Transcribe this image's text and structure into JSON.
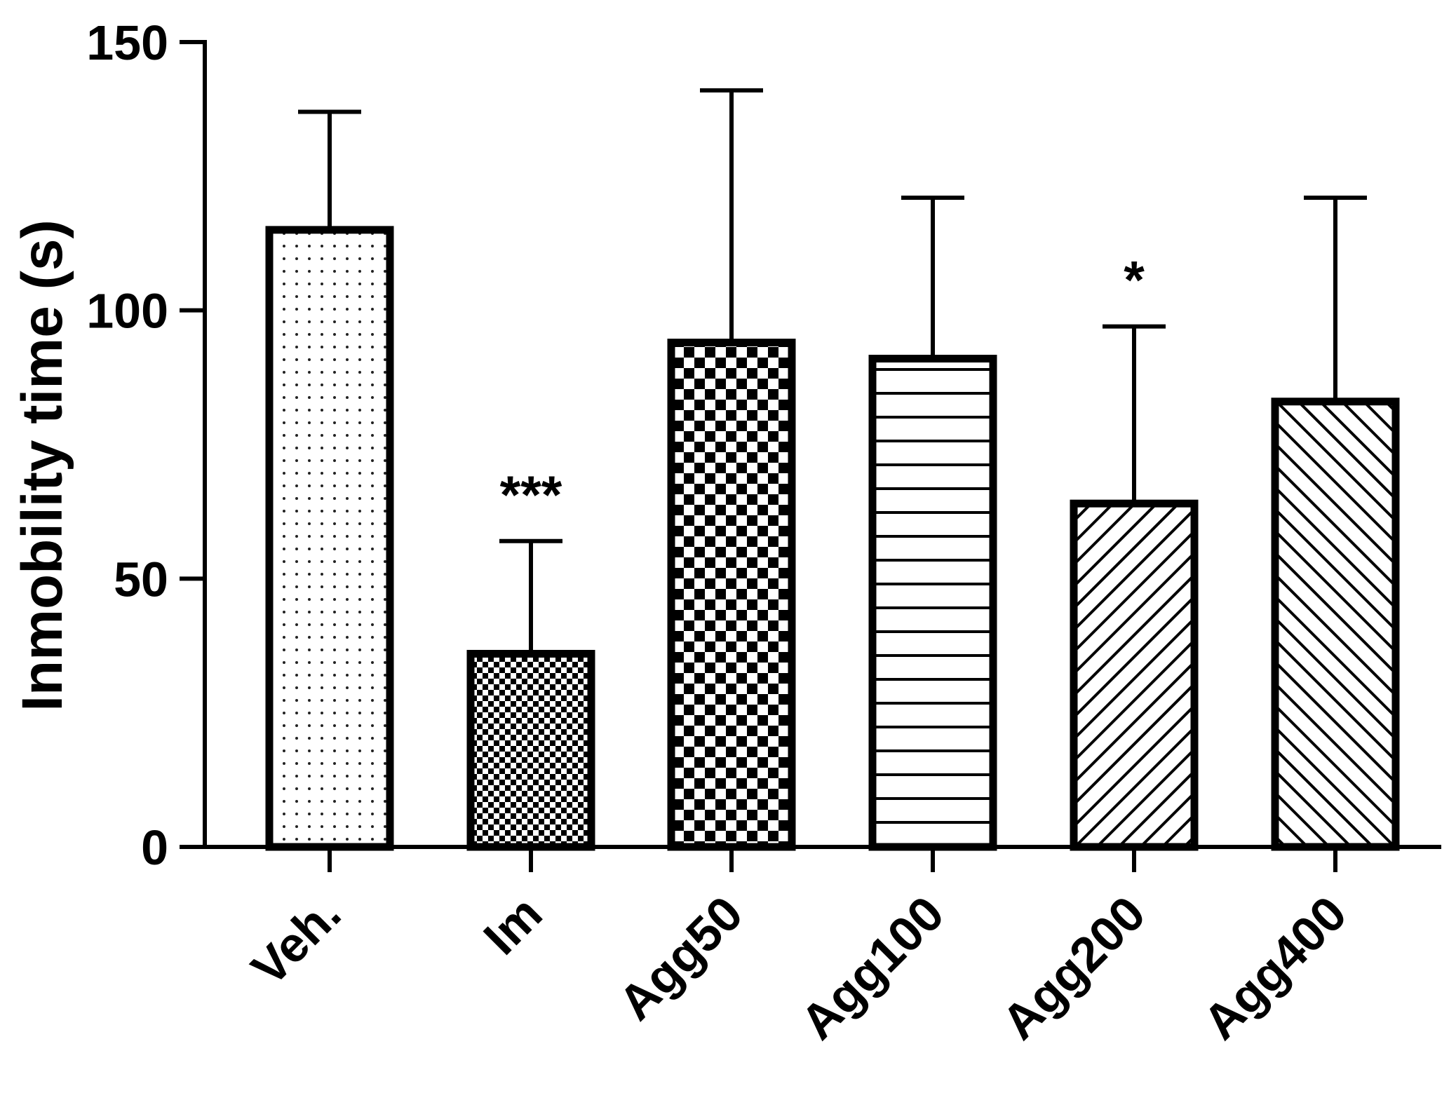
{
  "chart_data": {
    "type": "bar",
    "title": "",
    "xlabel": "",
    "ylabel": "Inmobility time (s)",
    "ylim": [
      0,
      150
    ],
    "yticks": [
      0,
      50,
      100,
      150
    ],
    "grid": false,
    "categories": [
      "Veh.",
      "Im",
      "Agg50",
      "Agg100",
      "Agg200",
      "Agg400"
    ],
    "values": [
      115,
      36,
      94,
      91,
      64,
      83
    ],
    "error_upper": [
      22,
      21,
      47,
      30,
      33,
      38
    ],
    "annotations": [
      "",
      "***",
      "",
      "",
      "*",
      ""
    ],
    "patterns": [
      "dots",
      "fine-checker",
      "checker",
      "horizontal-lines",
      "diagonal-forward",
      "diagonal-backward"
    ],
    "colors": {
      "stroke": "#000000",
      "fill": "#ffffff"
    }
  }
}
